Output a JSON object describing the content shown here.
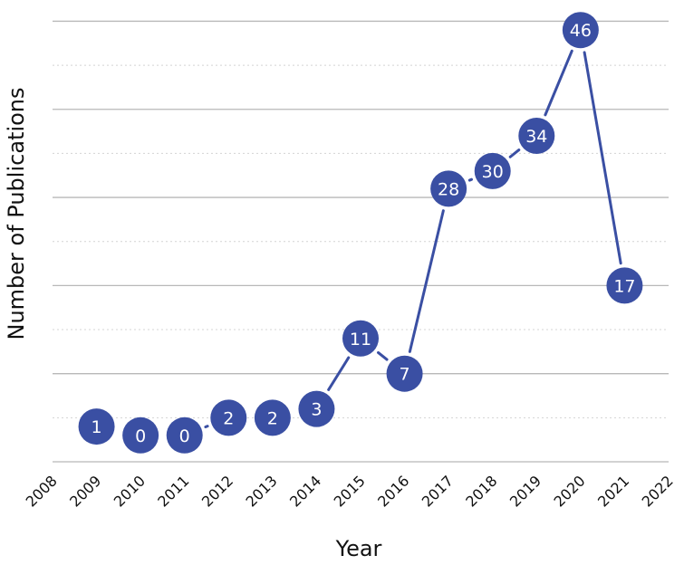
{
  "chart_data": {
    "type": "line",
    "title": "",
    "xlabel": "Year",
    "ylabel": "Number of Publications",
    "x_ticks": [
      "2008",
      "2009",
      "2010",
      "2011",
      "2012",
      "2013",
      "2014",
      "2015",
      "2016",
      "2017",
      "2018",
      "2019",
      "2020",
      "2021",
      "2022"
    ],
    "xlim": [
      2008,
      2022
    ],
    "ylim": [
      -3,
      49
    ],
    "series": [
      {
        "x": [
          2009,
          2010,
          2011,
          2012,
          2013,
          2014,
          2015,
          2016,
          2017,
          2018,
          2019,
          2020,
          2021
        ],
        "values": [
          1,
          0,
          0,
          2,
          2,
          3,
          11,
          7,
          28,
          30,
          34,
          46,
          17
        ],
        "labels": [
          "1",
          "0",
          "0",
          "2",
          "2",
          "3",
          "11",
          "7",
          "28",
          "30",
          "34",
          "46",
          "17"
        ]
      }
    ],
    "colors": {
      "marker": "#3a4fa3",
      "line": "#3a4fa3",
      "grid_solid": "#b8b8b8",
      "grid_dotted": "#d4d4d4"
    },
    "grid": true,
    "legend": "none"
  }
}
